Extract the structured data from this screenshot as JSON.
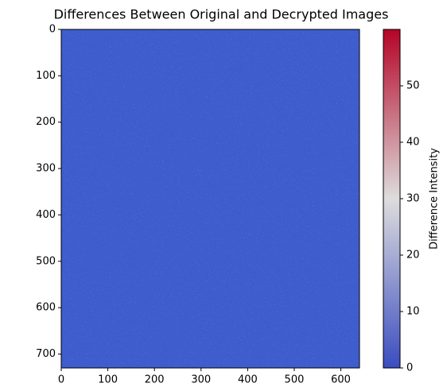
{
  "chart_data": {
    "type": "heatmap",
    "title": "Differences Between Original and Decrypted Images",
    "color": "#3f5ccd",
    "xlim": [
      0,
      640
    ],
    "xticks": [
      0,
      100,
      200,
      300,
      400,
      500,
      600
    ],
    "ylim": [
      0,
      730
    ],
    "y_inverted": true,
    "yticks": [
      0,
      100,
      200,
      300,
      400,
      500,
      600,
      700
    ],
    "colorbar": {
      "label": "Difference Intensity",
      "clim": [
        0,
        60
      ],
      "ticks": [
        0,
        10,
        20,
        30,
        40,
        50
      ],
      "colors": [
        "#3b4cc0",
        "#dddddd",
        "#b40426"
      ]
    }
  }
}
